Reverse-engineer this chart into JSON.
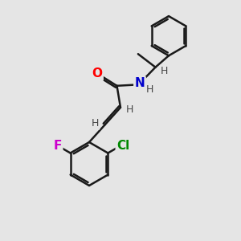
{
  "background_color": "#e5e5e5",
  "bond_color": "#1a1a1a",
  "bond_width": 1.8,
  "atom_labels": {
    "O": {
      "color": "#ff0000",
      "fontsize": 11,
      "fontweight": "bold"
    },
    "N": {
      "color": "#0000cc",
      "fontsize": 11,
      "fontweight": "bold"
    },
    "F": {
      "color": "#cc00cc",
      "fontsize": 11,
      "fontweight": "bold"
    },
    "Cl": {
      "color": "#008800",
      "fontsize": 11,
      "fontweight": "bold"
    },
    "H": {
      "color": "#444444",
      "fontsize": 9,
      "fontweight": "normal"
    }
  },
  "figsize": [
    3.0,
    3.0
  ],
  "dpi": 100
}
